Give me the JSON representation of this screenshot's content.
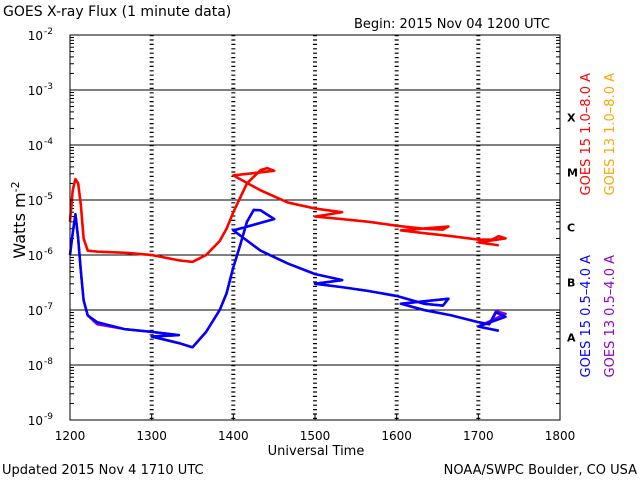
{
  "chart_data": {
    "type": "line",
    "title": "GOES X-ray Flux (1 minute data)",
    "begin": "Begin: 2015 Nov 04 1200 UTC",
    "updated": "Updated 2015 Nov  4 1710 UTC",
    "source": "NOAA/SWPC Boulder, CO USA",
    "xlabel": "Universal Time",
    "ylabel": "Watts m",
    "ylabel_sup": "-2",
    "xlim": [
      "1200",
      "1800"
    ],
    "xticks": [
      "1200",
      "1300",
      "1400",
      "1500",
      "1600",
      "1700",
      "1800"
    ],
    "y_scale": "log",
    "ylim": [
      1e-09,
      0.01
    ],
    "yticks": [
      {
        "base": "10",
        "exp": "-9",
        "value": 1e-09
      },
      {
        "base": "10",
        "exp": "-8",
        "value": 1e-08
      },
      {
        "base": "10",
        "exp": "-7",
        "value": 1e-07
      },
      {
        "base": "10",
        "exp": "-6",
        "value": 1e-06
      },
      {
        "base": "10",
        "exp": "-5",
        "value": 1e-05
      },
      {
        "base": "10",
        "exp": "-4",
        "value": 0.0001
      },
      {
        "base": "10",
        "exp": "-3",
        "value": 0.001
      },
      {
        "base": "10",
        "exp": "-2",
        "value": 0.01
      }
    ],
    "gridlines": [
      1e-08,
      1e-07,
      1e-06,
      1e-05,
      0.0001,
      0.001
    ],
    "flare_classes": [
      {
        "label": "A",
        "value": 3.16e-08
      },
      {
        "label": "B",
        "value": 3.16e-07
      },
      {
        "label": "C",
        "value": 3.16e-06
      },
      {
        "label": "M",
        "value": 3.16e-05
      },
      {
        "label": "X",
        "value": 0.000316
      }
    ],
    "legend": [
      {
        "text": "GOES 15 1.0–8.0 A",
        "color": "#ff0000"
      },
      {
        "text": "GOES 13 1.0–8.0 A",
        "color": "#ffa500"
      },
      {
        "text": "GOES 15 0.5–4.0 A",
        "color": "#0000ff"
      },
      {
        "text": "GOES 13 0.5–4.0 A",
        "color": "#8b00cc"
      }
    ],
    "series": [
      {
        "name": "GOES 13 1.0–8.0 A",
        "color": "#ffa500",
        "points": [
          [
            "1200",
            4e-06
          ],
          [
            "1202",
            1.5e-05
          ],
          [
            "1204",
            2.4e-05
          ],
          [
            "1206",
            2e-05
          ],
          [
            "1208",
            8e-06
          ],
          [
            "1210",
            2e-06
          ],
          [
            "1213",
            1.2e-06
          ],
          [
            "1220",
            1.15e-06
          ],
          [
            "1240",
            1.1e-06
          ],
          [
            "1300",
            1e-06
          ],
          [
            "1320",
            8e-07
          ],
          [
            "1330",
            7.5e-07
          ],
          [
            "1340",
            1e-06
          ],
          [
            "1350",
            1.8e-06
          ],
          [
            "1355",
            3e-06
          ],
          [
            "1360",
            6e-06
          ],
          [
            "1370",
            2e-05
          ],
          [
            "1380",
            3.5e-05
          ],
          [
            "1385",
            3.8e-05
          ],
          [
            "1390",
            3.4e-05
          ],
          [
            "1400",
            2.8e-05
          ],
          [
            "1420",
            1.5e-05
          ],
          [
            "1440",
            9e-06
          ],
          [
            "1460",
            7e-06
          ],
          [
            "1480",
            6e-06
          ],
          [
            "1500",
            5e-06
          ],
          [
            "1520",
            4.5e-06
          ],
          [
            "1540",
            4e-06
          ],
          [
            "1560",
            3.4e-06
          ],
          [
            "1580",
            3e-06
          ],
          [
            "1594",
            2.9e-06
          ],
          [
            "1598",
            3.3e-06
          ],
          [
            "1603",
            2.8e-06
          ],
          [
            "1620",
            2.5e-06
          ],
          [
            "1640",
            2.2e-06
          ],
          [
            "1660",
            1.9e-06
          ],
          [
            "1670",
            1.9e-06
          ],
          [
            "1675",
            2.2e-06
          ],
          [
            "1680",
            2e-06
          ],
          [
            "1700",
            1.7e-06
          ],
          [
            "1715",
            1.5e-06
          ]
        ]
      },
      {
        "name": "GOES 15 1.0–8.0 A",
        "color": "#ff0000",
        "points": [
          [
            "1200",
            4e-06
          ],
          [
            "1202",
            1.5e-05
          ],
          [
            "1204",
            2.4e-05
          ],
          [
            "1206",
            2e-05
          ],
          [
            "1208",
            8e-06
          ],
          [
            "1210",
            2e-06
          ],
          [
            "1213",
            1.2e-06
          ],
          [
            "1220",
            1.15e-06
          ],
          [
            "1240",
            1.1e-06
          ],
          [
            "1300",
            1e-06
          ],
          [
            "1320",
            8e-07
          ],
          [
            "1330",
            7.5e-07
          ],
          [
            "1340",
            1e-06
          ],
          [
            "1350",
            1.8e-06
          ],
          [
            "1355",
            3e-06
          ],
          [
            "1360",
            6e-06
          ],
          [
            "1370",
            2e-05
          ],
          [
            "1380",
            3.5e-05
          ],
          [
            "1385",
            3.8e-05
          ],
          [
            "1390",
            3.4e-05
          ],
          [
            "1400",
            2.8e-05
          ],
          [
            "1420",
            1.5e-05
          ],
          [
            "1440",
            9e-06
          ],
          [
            "1460",
            7e-06
          ],
          [
            "1480",
            6e-06
          ],
          [
            "1500",
            5e-06
          ],
          [
            "1520",
            4.5e-06
          ],
          [
            "1540",
            4e-06
          ],
          [
            "1560",
            3.4e-06
          ],
          [
            "1580",
            3e-06
          ],
          [
            "1594",
            2.9e-06
          ],
          [
            "1598",
            3.3e-06
          ],
          [
            "1603",
            2.8e-06
          ],
          [
            "1620",
            2.5e-06
          ],
          [
            "1640",
            2.2e-06
          ],
          [
            "1660",
            1.9e-06
          ],
          [
            "1670",
            1.9e-06
          ],
          [
            "1675",
            2.2e-06
          ],
          [
            "1680",
            2e-06
          ],
          [
            "1700",
            1.7e-06
          ],
          [
            "1715",
            1.5e-06
          ]
        ]
      },
      {
        "name": "GOES 13 0.5–4.0 A",
        "color": "#8b00cc",
        "points": [
          [
            "1200",
            1e-06
          ],
          [
            "1202",
            2.5e-06
          ],
          [
            "1204",
            5.5e-06
          ],
          [
            "1206",
            2e-06
          ],
          [
            "1208",
            5e-07
          ],
          [
            "1210",
            1.5e-07
          ],
          [
            "1213",
            8e-08
          ],
          [
            "1220",
            5.5e-08
          ],
          [
            "1240",
            4.5e-08
          ],
          [
            "1260",
            4e-08
          ],
          [
            "1280",
            3.5e-08
          ],
          [
            "1300",
            3.3e-08
          ],
          [
            "1320",
            2.5e-08
          ],
          [
            "1330",
            2.1e-08
          ],
          [
            "1340",
            4e-08
          ],
          [
            "1350",
            1e-07
          ],
          [
            "1355",
            2e-07
          ],
          [
            "1360",
            6e-07
          ],
          [
            "1365",
            1.5e-06
          ],
          [
            "1370",
            4e-06
          ],
          [
            "1375",
            6.6e-06
          ],
          [
            "1380",
            6.5e-06
          ],
          [
            "1390",
            4.5e-06
          ],
          [
            "1400",
            2.8e-06
          ],
          [
            "1420",
            1.2e-06
          ],
          [
            "1440",
            7e-07
          ],
          [
            "1460",
            4.5e-07
          ],
          [
            "1480",
            3.5e-07
          ],
          [
            "1500",
            3e-07
          ],
          [
            "1520",
            2.6e-07
          ],
          [
            "1540",
            2.2e-07
          ],
          [
            "1560",
            1.8e-07
          ],
          [
            "1580",
            1.3e-07
          ],
          [
            "1594",
            1.2e-07
          ],
          [
            "1598",
            1.6e-07
          ],
          [
            "1603",
            1.3e-07
          ],
          [
            "1620",
            1e-07
          ],
          [
            "1640",
            8e-08
          ],
          [
            "1660",
            6e-08
          ],
          [
            "1668",
            5.5e-08
          ],
          [
            "1673",
            9.5e-08
          ],
          [
            "1680",
            8.5e-08
          ],
          [
            "1700",
            5e-08
          ],
          [
            "1715",
            4.2e-08
          ]
        ]
      },
      {
        "name": "GOES 15 0.5–4.0 A",
        "color": "#0000ff",
        "points": [
          [
            "1200",
            1e-06
          ],
          [
            "1202",
            2.5e-06
          ],
          [
            "1204",
            5.5e-06
          ],
          [
            "1206",
            2e-06
          ],
          [
            "1208",
            5e-07
          ],
          [
            "1210",
            1.5e-07
          ],
          [
            "1213",
            8e-08
          ],
          [
            "1220",
            6e-08
          ],
          [
            "1240",
            4.5e-08
          ],
          [
            "1260",
            4e-08
          ],
          [
            "1280",
            3.5e-08
          ],
          [
            "1300",
            3.3e-08
          ],
          [
            "1320",
            2.5e-08
          ],
          [
            "1330",
            2.1e-08
          ],
          [
            "1340",
            4e-08
          ],
          [
            "1350",
            1e-07
          ],
          [
            "1355",
            2e-07
          ],
          [
            "1360",
            6e-07
          ],
          [
            "1365",
            1.5e-06
          ],
          [
            "1370",
            4e-06
          ],
          [
            "1375",
            6.6e-06
          ],
          [
            "1380",
            6.5e-06
          ],
          [
            "1390",
            4.5e-06
          ],
          [
            "1400",
            2.8e-06
          ],
          [
            "1420",
            1.2e-06
          ],
          [
            "1440",
            7e-07
          ],
          [
            "1460",
            4.5e-07
          ],
          [
            "1480",
            3.5e-07
          ],
          [
            "1500",
            3e-07
          ],
          [
            "1520",
            2.6e-07
          ],
          [
            "1540",
            2.2e-07
          ],
          [
            "1560",
            1.8e-07
          ],
          [
            "1580",
            1.3e-07
          ],
          [
            "1594",
            1.2e-07
          ],
          [
            "1598",
            1.6e-07
          ],
          [
            "1603",
            1.3e-07
          ],
          [
            "1620",
            1e-07
          ],
          [
            "1640",
            8e-08
          ],
          [
            "1660",
            6e-08
          ],
          [
            "1668",
            5.5e-08
          ],
          [
            "1673",
            9e-08
          ],
          [
            "1680",
            7.5e-08
          ],
          [
            "1700",
            5e-08
          ],
          [
            "1715",
            4.2e-08
          ]
        ]
      }
    ]
  }
}
